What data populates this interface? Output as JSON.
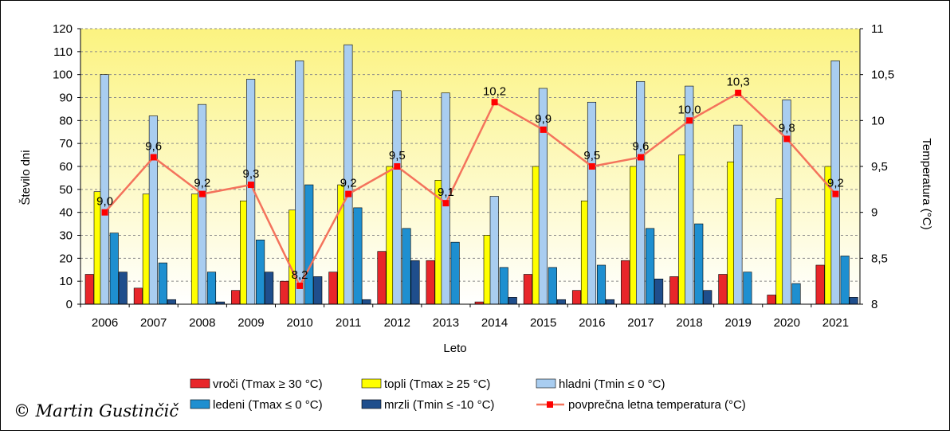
{
  "chart_data": {
    "type": "bar",
    "title": "",
    "xlabel": "Leto",
    "ylabel": "Število dni",
    "y2label": "Temperatura (°C)",
    "categories": [
      "2006",
      "2007",
      "2008",
      "2009",
      "2010",
      "2011",
      "2012",
      "2013",
      "2014",
      "2015",
      "2016",
      "2017",
      "2018",
      "2019",
      "2020",
      "2021"
    ],
    "ylim": [
      0,
      120
    ],
    "yticks": [
      0,
      10,
      20,
      30,
      40,
      50,
      60,
      70,
      80,
      90,
      100,
      110,
      120
    ],
    "y2lim": [
      8,
      11
    ],
    "y2ticks": [
      "8",
      "8,5",
      "9",
      "9,5",
      "10",
      "10,5",
      "11"
    ],
    "grid": true,
    "legend_position": "bottom",
    "series": [
      {
        "name": "vroči (Tmax ≥ 30 °C)",
        "color": "#e8262a",
        "values": [
          13,
          7,
          0,
          6,
          10,
          14,
          23,
          19,
          1,
          13,
          6,
          19,
          12,
          13,
          4,
          17
        ]
      },
      {
        "name": "topli (Tmax ≥ 25 °C)",
        "color": "#ffff00",
        "values": [
          49,
          48,
          48,
          45,
          41,
          52,
          60,
          54,
          30,
          60,
          45,
          60,
          65,
          62,
          46,
          60
        ]
      },
      {
        "name": "hladni (Tmin ≤ 0 °C)",
        "color": "#a9cdf0",
        "values": [
          100,
          82,
          87,
          98,
          106,
          113,
          93,
          92,
          47,
          94,
          88,
          97,
          95,
          78,
          89,
          106
        ]
      },
      {
        "name": "ledeni (Tmax ≤ 0 °C)",
        "color": "#1e8fd0",
        "values": [
          31,
          18,
          14,
          28,
          52,
          42,
          33,
          27,
          16,
          16,
          17,
          33,
          35,
          14,
          9,
          21
        ]
      },
      {
        "name": "mrzli (Tmin ≤ -10 °C)",
        "color": "#1f4e8c",
        "values": [
          14,
          2,
          1,
          14,
          12,
          2,
          19,
          0,
          3,
          2,
          2,
          11,
          6,
          0,
          0,
          3
        ]
      }
    ],
    "line_series": {
      "name": "povprečna letna temperatura (°C)",
      "color": "#f4735c",
      "marker_color": "#ff0000",
      "axis": "secondary",
      "values": [
        9.0,
        9.6,
        9.2,
        9.3,
        8.2,
        9.2,
        9.5,
        9.1,
        10.2,
        9.9,
        9.5,
        9.6,
        10.0,
        10.3,
        9.8,
        9.2
      ],
      "labels": [
        "9,0",
        "9,6",
        "9,2",
        "9,3",
        "8,2",
        "9,2",
        "9,5",
        "9,1",
        "10,2",
        "9,9",
        "9,5",
        "9,6",
        "10,0",
        "10,3",
        "9,8",
        "9,2"
      ]
    }
  },
  "watermark": "© Martin Gustinčič"
}
